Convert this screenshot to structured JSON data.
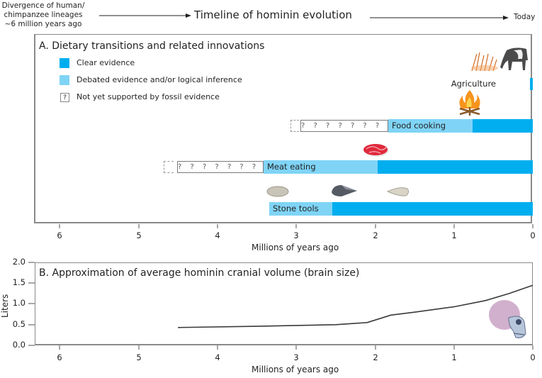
{
  "header": {
    "left_note_lines": [
      "Divergence of human/",
      "chimpanzee lineages",
      "~6 million years ago"
    ],
    "title": "Timeline of hominin evolution",
    "right_note": "Today"
  },
  "panel_a": {
    "title": "A.  Dietary transitions and related innovations",
    "legend": [
      {
        "label": "Clear evidence",
        "color": "#00aeef"
      },
      {
        "label": "Debated evidence and/or logical inference",
        "color": "#7fd4f6"
      },
      {
        "label": "Not yet supported by fossil evidence",
        "symbol": "?"
      }
    ],
    "innovations": [
      {
        "label": "Agriculture",
        "icons": [
          "wheat-icon",
          "cow-icon"
        ],
        "clear_start_mya": 0.01
      },
      {
        "label": "Food cooking",
        "icons": [
          "campfire-icon"
        ],
        "unsupported_start_mya": 3.0,
        "debated_start_mya": 1.85,
        "clear_start_mya": 0.8
      },
      {
        "label": "Meat eating",
        "icons": [
          "meat-icon"
        ],
        "unsupported_start_mya": 4.5,
        "debated_start_mya": 3.4,
        "clear_start_mya": 1.95
      },
      {
        "label": "Stone tools",
        "icons": [
          "stone-tool-icon",
          "stone-tool-icon",
          "stone-tool-icon"
        ],
        "debated_start_mya": 3.3,
        "clear_start_mya": 2.55
      }
    ],
    "qmarks": "? ? ? ? ? ? ? ? ?",
    "x_ticks": [
      "6",
      "5",
      "4",
      "3",
      "2",
      "1",
      "0"
    ],
    "xlabel": "Millions of years ago"
  },
  "panel_b": {
    "title": "B.  Approximation of average hominin cranial volume (brain size)",
    "y_ticks": [
      "2.0",
      "1.5",
      "1.0",
      "0.5",
      "0.0"
    ],
    "ylabel": "Liters",
    "x_ticks": [
      "6",
      "5",
      "4",
      "3",
      "2",
      "1",
      "0"
    ],
    "xlabel": "Millions of years ago",
    "icon": "skull-icon"
  },
  "chart_data": {
    "type": "line",
    "title": "Approximation of average hominin cranial volume (brain size)",
    "xlabel": "Millions of years ago",
    "ylabel": "Liters",
    "xlim": [
      6.3,
      0
    ],
    "ylim": [
      0,
      2.0
    ],
    "x_ticks": [
      6,
      5,
      4,
      3,
      2,
      1,
      0
    ],
    "y_ticks": [
      0.0,
      0.5,
      1.0,
      1.5,
      2.0
    ],
    "grid": false,
    "series": [
      {
        "name": "Cranial volume",
        "x": [
          4.5,
          3.5,
          3.0,
          2.5,
          2.1,
          1.8,
          1.5,
          1.0,
          0.6,
          0.3,
          0.0
        ],
        "y": [
          0.43,
          0.46,
          0.48,
          0.5,
          0.55,
          0.73,
          0.8,
          0.93,
          1.08,
          1.25,
          1.45
        ]
      }
    ],
    "color": "#3a3a3a"
  }
}
